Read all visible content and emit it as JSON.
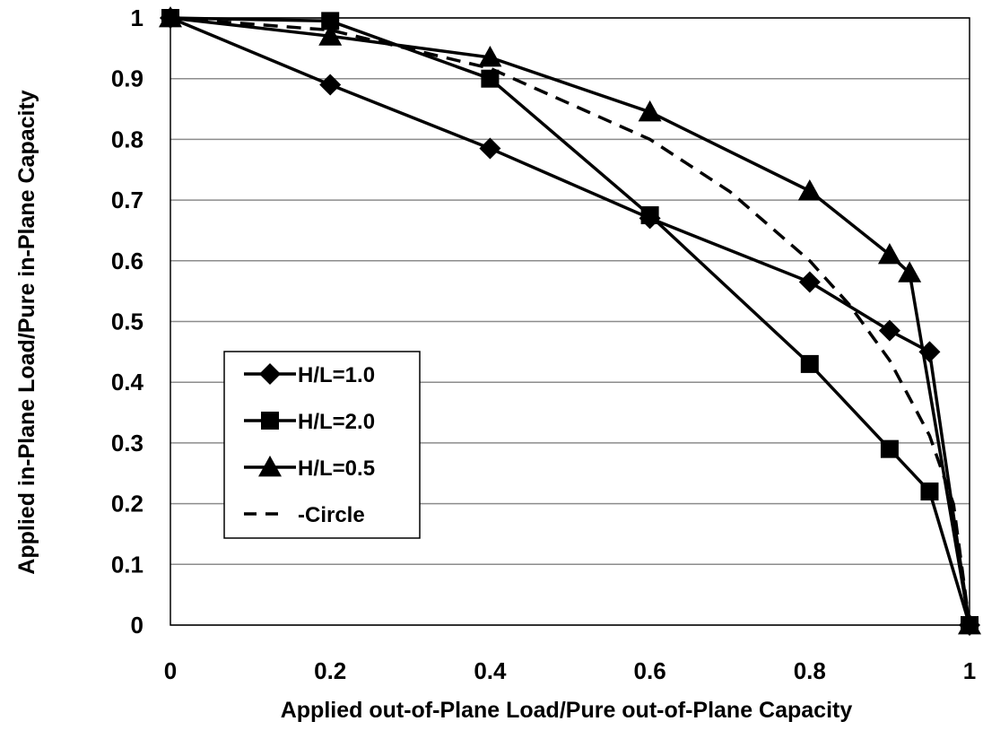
{
  "chart_data": {
    "type": "line",
    "title": "",
    "xlabel": "Applied out-of-Plane Load/Pure out-of-Plane Capacity",
    "ylabel": "Applied in-Plane Load/Pure in-Plane Capacity",
    "xlim": [
      0,
      1
    ],
    "ylim": [
      0,
      1
    ],
    "xticks": [
      "0",
      "0.2",
      "0.4",
      "0.6",
      "0.8",
      "1"
    ],
    "yticks": [
      "0",
      "0.1",
      "0.2",
      "0.3",
      "0.4",
      "0.5",
      "0.6",
      "0.7",
      "0.8",
      "0.9",
      "1"
    ],
    "grid": "horizontal",
    "legend_position": "left-middle",
    "series": [
      {
        "name": "H/L=1.0",
        "marker": "diamond",
        "line": "solid",
        "color": "#000000",
        "x": [
          0,
          0.2,
          0.4,
          0.6,
          0.8,
          0.9,
          0.95,
          1.0
        ],
        "y": [
          1.0,
          0.89,
          0.785,
          0.67,
          0.565,
          0.485,
          0.45,
          0.0
        ]
      },
      {
        "name": "H/L=2.0",
        "marker": "square",
        "line": "solid",
        "color": "#000000",
        "x": [
          0,
          0.2,
          0.4,
          0.6,
          0.8,
          0.9,
          0.95,
          1.0
        ],
        "y": [
          1.0,
          0.995,
          0.9,
          0.675,
          0.43,
          0.29,
          0.22,
          0.0
        ]
      },
      {
        "name": "H/L=0.5",
        "marker": "triangle",
        "line": "solid",
        "color": "#000000",
        "x": [
          0,
          0.2,
          0.4,
          0.6,
          0.8,
          0.9,
          0.925,
          1.0
        ],
        "y": [
          1.0,
          0.97,
          0.935,
          0.845,
          0.715,
          0.61,
          0.58,
          0.0
        ]
      },
      {
        "name": "Circle",
        "marker": "none",
        "line": "dashed",
        "color": "#000000",
        "x": [
          0,
          0.2,
          0.4,
          0.6,
          0.7,
          0.8,
          0.85,
          0.9,
          0.95,
          0.98,
          1.0
        ],
        "y": [
          1.0,
          0.98,
          0.917,
          0.8,
          0.714,
          0.6,
          0.527,
          0.436,
          0.312,
          0.199,
          0.0
        ]
      }
    ],
    "legend": {
      "entries": [
        "H/L=1.0",
        "H/L=2.0",
        "H/L=0.5",
        "Circle"
      ]
    }
  }
}
